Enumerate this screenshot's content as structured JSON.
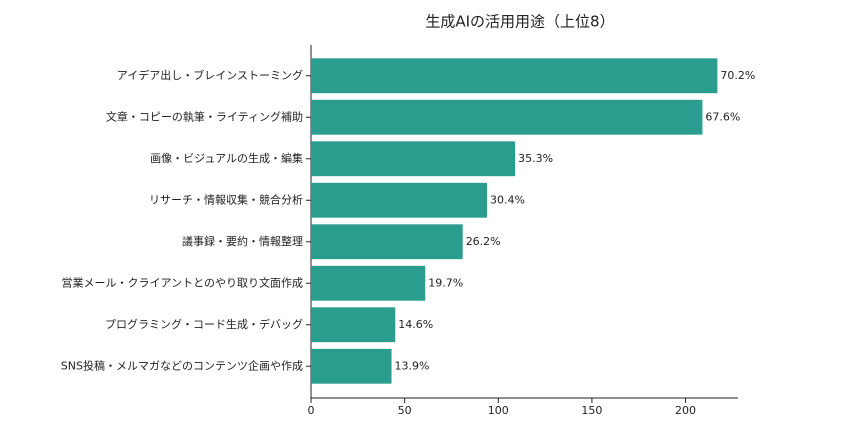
{
  "chart_data": {
    "type": "barh",
    "title": "生成AIの活用用途（上位8）",
    "categories": [
      "アイデア出し・ブレインストーミング",
      "文章・コピーの執筆・ライティング補助",
      "画像・ビジュアルの生成・編集",
      "リサーチ・情報収集・競合分析",
      "議事録・要約・情報整理",
      "営業メール・クライアントとのやり取り文面作成",
      "プログラミング・コード生成・デバッグ",
      "SNS投稿・メルマガなどのコンテンツ企画や作成"
    ],
    "values": [
      217,
      209,
      109,
      94,
      81,
      61,
      45,
      43
    ],
    "value_labels": [
      "70.2%",
      "67.6%",
      "35.3%",
      "30.4%",
      "26.2%",
      "19.7%",
      "14.6%",
      "13.9%"
    ],
    "color": "#2a9d8f",
    "xlim": [
      0,
      228
    ],
    "xticks": [
      0,
      50,
      100,
      150,
      200
    ],
    "grid": false
  }
}
